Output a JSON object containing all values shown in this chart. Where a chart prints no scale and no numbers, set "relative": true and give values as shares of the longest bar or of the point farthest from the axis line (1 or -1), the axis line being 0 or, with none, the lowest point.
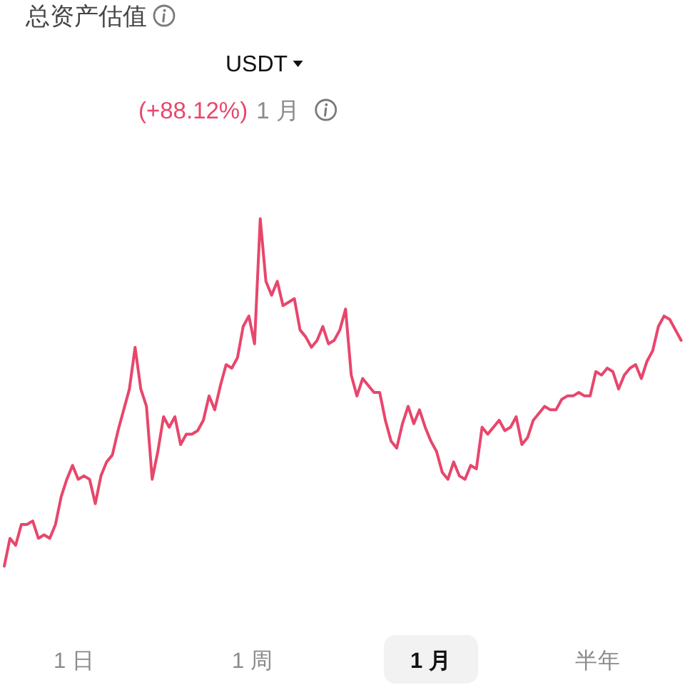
{
  "chart_data": {
    "type": "line",
    "title": "总资产估值",
    "subtitle": "USDT",
    "annotations": [
      "(+88.12%)",
      "1 月",
      "1 日",
      "1 周",
      "1 月",
      "半年"
    ],
    "relative": true,
    "line_style": "solid",
    "categories": [
      null,
      null,
      null,
      null,
      null,
      null,
      null,
      null,
      null,
      null,
      null,
      null,
      null,
      null,
      null,
      null,
      null,
      null,
      null,
      null,
      null,
      null,
      null,
      null,
      null,
      null,
      null,
      null,
      null,
      null,
      null,
      null,
      null,
      null,
      null,
      null,
      null,
      null,
      null,
      null,
      null,
      null,
      null,
      null,
      null,
      null,
      null,
      null,
      null,
      null,
      null,
      null,
      null,
      null,
      null,
      null,
      null,
      null,
      null,
      null,
      null,
      null,
      null,
      null,
      null,
      null,
      null,
      null,
      null,
      null,
      null,
      null,
      null,
      null,
      null,
      null,
      null,
      null,
      null,
      null,
      null,
      null,
      null,
      null,
      null,
      null,
      null,
      null,
      null,
      null,
      null,
      null,
      null,
      null,
      null,
      null,
      null,
      null,
      null,
      null,
      null,
      null,
      null,
      null,
      null,
      null,
      null,
      null,
      null,
      null,
      null,
      null,
      null,
      null,
      null,
      null,
      null,
      null,
      null,
      null
    ],
    "series": [
      {
        "color": "#e8466c",
        "values": [
          0,
          0.08,
          0.06,
          0.12,
          0.12,
          0.13,
          0.08,
          0.09,
          0.08,
          0.12,
          0.2,
          0.25,
          0.29,
          0.25,
          0.26,
          0.25,
          0.18,
          0.26,
          0.3,
          0.32,
          0.39,
          0.45,
          0.51,
          0.63,
          0.51,
          0.46,
          0.25,
          0.33,
          0.43,
          0.4,
          0.43,
          0.35,
          0.38,
          0.38,
          0.39,
          0.42,
          0.49,
          0.45,
          0.52,
          0.58,
          0.57,
          0.6,
          0.69,
          0.72,
          0.64,
          1,
          0.82,
          0.78,
          0.82,
          0.75,
          0.76,
          0.77,
          0.68,
          0.66,
          0.63,
          0.65,
          0.69,
          0.64,
          0.65,
          0.68,
          0.74,
          0.55,
          0.49,
          0.54,
          0.52,
          0.5,
          0.5,
          0.42,
          0.36,
          0.34,
          0.41,
          0.46,
          0.41,
          0.45,
          0.4,
          0.36,
          0.33,
          0.27,
          0.25,
          0.3,
          0.26,
          0.25,
          0.29,
          0.28,
          0.4,
          0.38,
          0.4,
          0.42,
          0.39,
          0.4,
          0.43,
          0.35,
          0.37,
          0.42,
          0.44,
          0.46,
          0.45,
          0.45,
          0.48,
          0.49,
          0.49,
          0.5,
          0.49,
          0.49,
          0.56,
          0.55,
          0.57,
          0.56,
          0.51,
          0.55,
          0.57,
          0.58,
          0.54,
          0.59,
          0.62,
          0.69,
          0.72,
          0.71,
          0.68,
          0.65
        ]
      }
    ]
  }
}
